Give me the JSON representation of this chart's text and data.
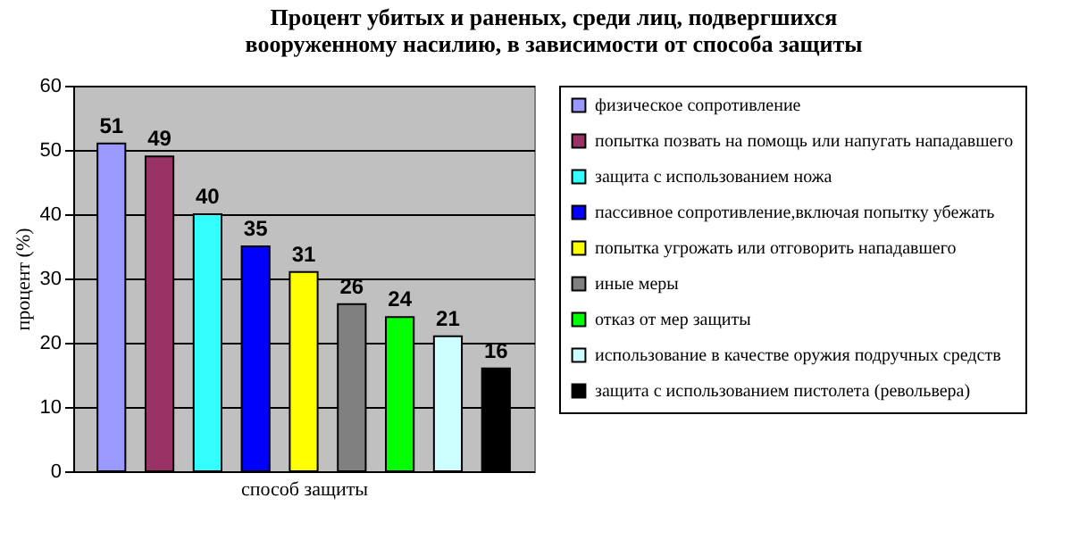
{
  "chart_data": {
    "type": "bar",
    "title": "Процент убитых и раненых, среди лиц, подвергшихся вооруженному насилию, в зависимости от способа защиты",
    "xlabel": "способ защиты",
    "ylabel": "процент (%)",
    "categories": [
      null
    ],
    "series": [
      {
        "name": "физическое сопротивление",
        "color": "#9999ff",
        "values": [
          51
        ]
      },
      {
        "name": "попытка позвать на помощь или напугать нападавшего",
        "color": "#993366",
        "values": [
          49
        ]
      },
      {
        "name": "защита с использованием ножа",
        "color": "#33ffff",
        "values": [
          40
        ]
      },
      {
        "name": "пассивное сопротивление,включая попытку убежать",
        "color": "#0000ff",
        "values": [
          35
        ]
      },
      {
        "name": "попытка угрожать или отговорить нападавшего",
        "color": "#ffff00",
        "values": [
          31
        ]
      },
      {
        "name": "иные меры",
        "color": "#808080",
        "values": [
          26
        ]
      },
      {
        "name": "отказ от мер защиты",
        "color": "#00ff00",
        "values": [
          24
        ]
      },
      {
        "name": "использование в качестве оружия подручных средств",
        "color": "#ccffff",
        "values": [
          21
        ]
      },
      {
        "name": "защита с использованием пистолета (револьвера)",
        "color": "#000000",
        "values": [
          16
        ]
      }
    ],
    "ylim": [
      0,
      60
    ],
    "yticks": [
      0,
      10,
      20,
      30,
      40,
      50,
      60
    ],
    "grid": "y",
    "legend": "right",
    "data_labels": true
  }
}
